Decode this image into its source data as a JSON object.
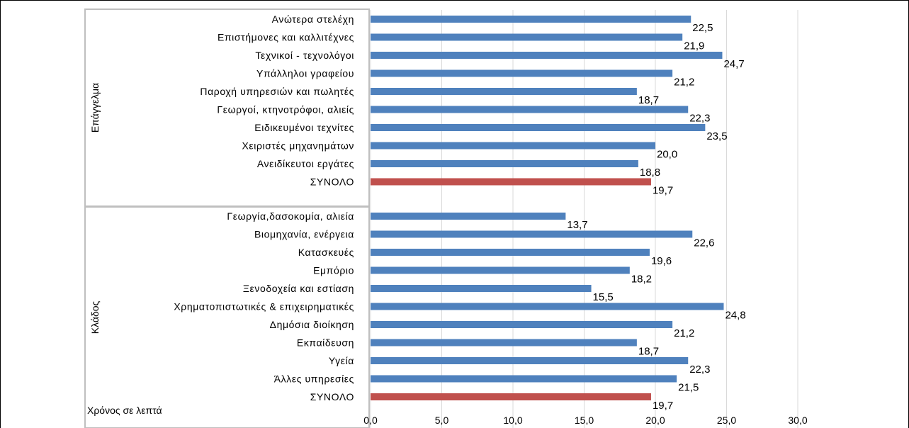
{
  "chart_data": {
    "type": "bar",
    "orientation": "horizontal",
    "axis_title": "Χρόνος σε λεπτά",
    "xlim": [
      0,
      30
    ],
    "xticks": [
      "0,0",
      "5,0",
      "10,0",
      "15,0",
      "20,0",
      "25,0",
      "30,0"
    ],
    "grid": true,
    "colors": {
      "bar": "#4f81bd",
      "total": "#c0504d"
    },
    "groups": [
      {
        "name": "Επάγγελμα",
        "items": [
          {
            "label": "Ανώτερα στελέχη",
            "value": 22.5,
            "value_label": "22,5"
          },
          {
            "label": "Επιστήμονες και καλλιτέχνες",
            "value": 21.9,
            "value_label": "21,9"
          },
          {
            "label": "Τεχνικοί - τεχνολόγοι",
            "value": 24.7,
            "value_label": "24,7"
          },
          {
            "label": "Υπάλληλοι γραφείου",
            "value": 21.2,
            "value_label": "21,2"
          },
          {
            "label": "Παροχή υπηρεσιών και πωλητές",
            "value": 18.7,
            "value_label": "18,7"
          },
          {
            "label": "Γεωργοί, κτηνοτρόφοι, αλιείς",
            "value": 22.3,
            "value_label": "22,3"
          },
          {
            "label": "Ειδικευμένοι τεχνίτες",
            "value": 23.5,
            "value_label": "23,5"
          },
          {
            "label": "Χειριστές μηχανημάτων",
            "value": 20.0,
            "value_label": "20,0"
          },
          {
            "label": "Ανειδίκευτοι εργάτες",
            "value": 18.8,
            "value_label": "18,8"
          },
          {
            "label": "ΣΥΝΟΛΟ",
            "value": 19.7,
            "value_label": "19,7",
            "total": true
          }
        ]
      },
      {
        "name": "Κλάδος",
        "items": [
          {
            "label": "Γεωργία,δασοκομία, αλιεία",
            "value": 13.7,
            "value_label": "13,7"
          },
          {
            "label": "Βιομηχανία, ενέργεια",
            "value": 22.6,
            "value_label": "22,6"
          },
          {
            "label": "Κατασκευές",
            "value": 19.6,
            "value_label": "19,6"
          },
          {
            "label": "Εμπόριο",
            "value": 18.2,
            "value_label": "18,2"
          },
          {
            "label": "Ξενοδοχεία και εστίαση",
            "value": 15.5,
            "value_label": "15,5"
          },
          {
            "label": "Χρηματοπιστωτικές & επιχειρηματικές",
            "value": 24.8,
            "value_label": "24,8"
          },
          {
            "label": "Δημόσια διοίκηση",
            "value": 21.2,
            "value_label": "21,2"
          },
          {
            "label": "Εκπαίδευση",
            "value": 18.7,
            "value_label": "18,7"
          },
          {
            "label": "Υγεία",
            "value": 22.3,
            "value_label": "22,3"
          },
          {
            "label": "Άλλες υπηρεσίες",
            "value": 21.5,
            "value_label": "21,5"
          },
          {
            "label": "ΣΥΝΟΛΟ",
            "value": 19.7,
            "value_label": "19,7",
            "total": true
          }
        ]
      }
    ]
  }
}
